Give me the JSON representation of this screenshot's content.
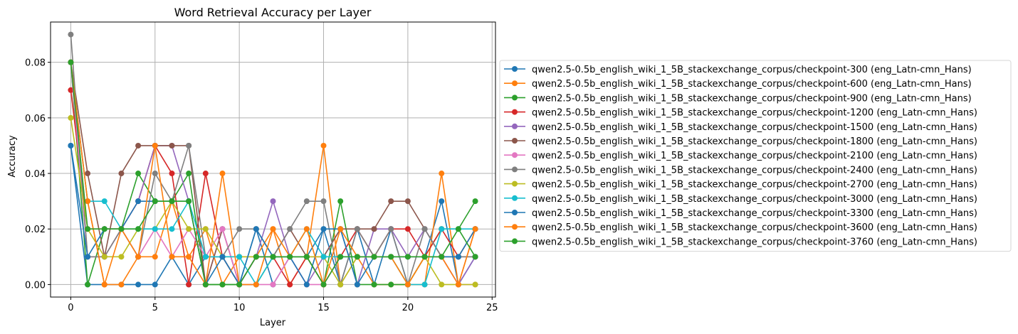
{
  "chart_data": {
    "type": "line",
    "title": "Word Retrieval Accuracy per Layer",
    "xlabel": "Layer",
    "ylabel": "Accuracy",
    "xlim": [
      -1.2,
      25.2
    ],
    "ylim": [
      -0.0045,
      0.0945
    ],
    "xticks": [
      0,
      5,
      10,
      15,
      20,
      25
    ],
    "yticks": [
      0.0,
      0.02,
      0.04,
      0.06,
      0.08
    ],
    "ytick_labels": [
      "0.00",
      "0.02",
      "0.04",
      "0.06",
      "0.08"
    ],
    "grid": true,
    "legend_position": "right, outside plot",
    "x": [
      0,
      1,
      2,
      3,
      4,
      5,
      6,
      7,
      8,
      9,
      10,
      11,
      12,
      13,
      14,
      15,
      16,
      17,
      18,
      19,
      20,
      21,
      22,
      23,
      24
    ],
    "series": [
      {
        "name": "qwen2.5-0.5b_english_wiki_1_5B_stackexchange_corpus/checkpoint-300 (eng_Latn-cmn_Hans)",
        "color": "#1f77b4",
        "values": [
          0.05,
          0.0,
          0.0,
          0.0,
          0.0,
          0.0,
          0.01,
          0.0,
          0.01,
          0.01,
          0.0,
          0.02,
          0.0,
          0.01,
          0.01,
          0.02,
          0.0,
          0.02,
          0.0,
          0.02,
          0.0,
          0.01,
          0.03,
          0.0,
          0.01
        ]
      },
      {
        "name": "qwen2.5-0.5b_english_wiki_1_5B_stackexchange_corpus/checkpoint-600 (eng_Latn-cmn_Hans)",
        "color": "#ff7f0e",
        "values": [
          0.08,
          0.03,
          0.0,
          0.0,
          0.01,
          0.01,
          0.03,
          0.01,
          0.02,
          0.0,
          0.01,
          0.01,
          0.02,
          0.0,
          0.01,
          0.05,
          0.0,
          0.01,
          0.0,
          0.0,
          0.0,
          0.0,
          0.04,
          0.0,
          0.02
        ]
      },
      {
        "name": "qwen2.5-0.5b_english_wiki_1_5B_stackexchange_corpus/checkpoint-900 (eng_Latn-cmn_Hans)",
        "color": "#2ca02c",
        "values": [
          0.08,
          0.0,
          0.02,
          0.02,
          0.04,
          0.03,
          0.03,
          0.04,
          0.0,
          0.0,
          0.0,
          0.0,
          0.01,
          0.01,
          0.01,
          0.0,
          0.03,
          0.0,
          0.0,
          0.0,
          0.0,
          0.01,
          0.02,
          0.02,
          0.03
        ]
      },
      {
        "name": "qwen2.5-0.5b_english_wiki_1_5B_stackexchange_corpus/checkpoint-1200 (eng_Latn-cmn_Hans)",
        "color": "#d62728",
        "values": [
          0.07,
          0.02,
          0.02,
          0.02,
          0.03,
          0.05,
          0.04,
          0.0,
          0.04,
          0.01,
          0.0,
          0.01,
          0.01,
          0.0,
          0.01,
          0.0,
          0.01,
          0.02,
          0.01,
          0.02,
          0.02,
          0.01,
          0.02,
          0.01,
          0.02
        ]
      },
      {
        "name": "qwen2.5-0.5b_english_wiki_1_5B_stackexchange_corpus/checkpoint-1500 (eng_Latn-cmn_Hans)",
        "color": "#9467bd",
        "values": [
          0.08,
          0.01,
          0.01,
          0.02,
          0.03,
          0.05,
          0.05,
          0.03,
          0.0,
          0.02,
          0.0,
          0.01,
          0.03,
          0.01,
          0.0,
          0.01,
          0.02,
          0.0,
          0.02,
          0.02,
          0.01,
          0.02,
          0.01,
          0.0,
          0.01
        ]
      },
      {
        "name": "qwen2.5-0.5b_english_wiki_1_5B_stackexchange_corpus/checkpoint-1800 (eng_Latn-cmn_Hans)",
        "color": "#8c564b",
        "values": [
          0.08,
          0.04,
          0.01,
          0.04,
          0.05,
          0.05,
          0.05,
          0.05,
          0.0,
          0.02,
          0.0,
          0.01,
          0.01,
          0.02,
          0.01,
          0.01,
          0.02,
          0.02,
          0.02,
          0.03,
          0.03,
          0.02,
          0.01,
          0.01,
          0.01
        ]
      },
      {
        "name": "qwen2.5-0.5b_english_wiki_1_5B_stackexchange_corpus/checkpoint-2100 (eng_Latn-cmn_Hans)",
        "color": "#e377c2",
        "values": [
          0.08,
          0.01,
          0.01,
          0.02,
          0.01,
          0.02,
          0.01,
          0.02,
          0.01,
          0.02,
          0.0,
          0.0,
          0.0,
          0.01,
          0.0,
          0.0,
          0.01,
          0.01,
          0.01,
          0.01,
          0.01,
          0.01,
          0.01,
          0.0,
          0.0
        ]
      },
      {
        "name": "qwen2.5-0.5b_english_wiki_1_5B_stackexchange_corpus/checkpoint-2400 (eng_Latn-cmn_Hans)",
        "color": "#7f7f7f",
        "values": [
          0.09,
          0.01,
          0.01,
          0.02,
          0.01,
          0.04,
          0.03,
          0.05,
          0.01,
          0.01,
          0.02,
          0.02,
          0.01,
          0.02,
          0.03,
          0.03,
          0.0,
          0.02,
          0.01,
          0.02,
          0.0,
          0.02,
          0.01,
          0.01,
          0.01
        ]
      },
      {
        "name": "qwen2.5-0.5b_english_wiki_1_5B_stackexchange_corpus/checkpoint-2700 (eng_Latn-cmn_Hans)",
        "color": "#bcbd22",
        "values": [
          0.06,
          0.02,
          0.01,
          0.01,
          0.02,
          0.02,
          0.03,
          0.02,
          0.02,
          0.01,
          0.01,
          0.01,
          0.01,
          0.01,
          0.01,
          0.01,
          0.0,
          0.01,
          0.01,
          0.01,
          0.0,
          0.01,
          0.0,
          0.0,
          0.0
        ]
      },
      {
        "name": "qwen2.5-0.5b_english_wiki_1_5B_stackexchange_corpus/checkpoint-3000 (eng_Latn-cmn_Hans)",
        "color": "#17becf",
        "values": [
          0.08,
          0.03,
          0.03,
          0.02,
          0.02,
          0.02,
          0.02,
          0.03,
          0.01,
          0.01,
          0.01,
          0.0,
          0.01,
          0.01,
          0.02,
          0.01,
          0.01,
          0.01,
          0.01,
          0.01,
          0.0,
          0.0,
          0.02,
          0.02,
          0.02
        ]
      },
      {
        "name": "qwen2.5-0.5b_english_wiki_1_5B_stackexchange_corpus/checkpoint-3300 (eng_Latn-cmn_Hans)",
        "color": "#1f77b4",
        "values": [
          0.05,
          0.01,
          0.02,
          0.02,
          0.03,
          0.03,
          0.03,
          0.03,
          0.0,
          0.01,
          0.0,
          0.02,
          0.01,
          0.01,
          0.0,
          0.02,
          0.02,
          0.0,
          0.01,
          0.01,
          0.01,
          0.01,
          0.01,
          0.01,
          0.02
        ]
      },
      {
        "name": "qwen2.5-0.5b_english_wiki_1_5B_stackexchange_corpus/checkpoint-3600 (eng_Latn-cmn_Hans)",
        "color": "#ff7f0e",
        "values": [
          0.08,
          0.03,
          0.0,
          0.02,
          0.01,
          0.05,
          0.01,
          0.01,
          0.0,
          0.04,
          0.0,
          0.0,
          0.02,
          0.01,
          0.02,
          0.0,
          0.02,
          0.01,
          0.01,
          0.01,
          0.0,
          0.01,
          0.01,
          0.0,
          0.02
        ]
      },
      {
        "name": "qwen2.5-0.5b_english_wiki_1_5B_stackexchange_corpus/checkpoint-3760 (eng_Latn-cmn_Hans)",
        "color": "#2ca02c",
        "values": [
          0.08,
          0.02,
          0.02,
          0.02,
          0.02,
          0.03,
          0.03,
          0.03,
          0.0,
          0.0,
          0.0,
          0.01,
          0.01,
          0.01,
          0.01,
          0.0,
          0.01,
          0.01,
          0.01,
          0.01,
          0.01,
          0.01,
          0.01,
          0.02,
          0.01
        ]
      }
    ]
  }
}
